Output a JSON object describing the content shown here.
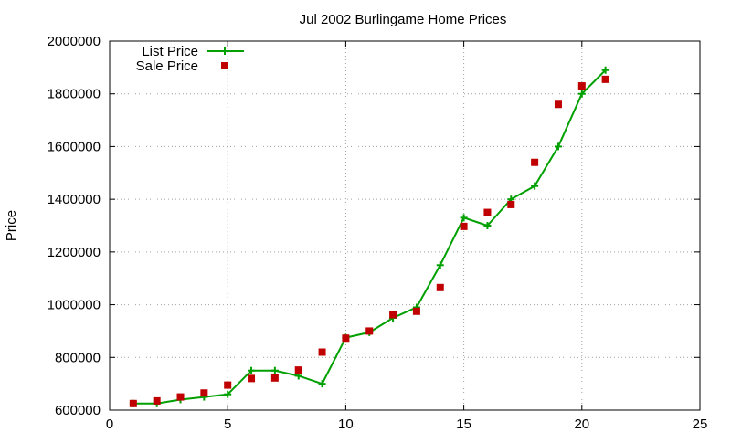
{
  "chart_data": {
    "type": "line",
    "title": "Jul 2002 Burlingame Home Prices",
    "xlabel": "",
    "ylabel": "Price",
    "xlim": [
      0,
      25
    ],
    "ylim": [
      600000,
      2000000
    ],
    "x_ticks": [
      0,
      5,
      10,
      15,
      20,
      25
    ],
    "y_ticks": [
      600000,
      800000,
      1000000,
      1200000,
      1400000,
      1600000,
      1800000,
      2000000
    ],
    "grid": true,
    "legend_position": "top-left",
    "series": [
      {
        "name": "List Price",
        "style": "line+cross",
        "color": "#00a000",
        "x": [
          1,
          2,
          3,
          4,
          5,
          6,
          7,
          8,
          9,
          10,
          11,
          12,
          13,
          14,
          15,
          16,
          17,
          18,
          19,
          20,
          21
        ],
        "values": [
          625000,
          625000,
          640000,
          650000,
          660000,
          750000,
          750000,
          730000,
          700000,
          875000,
          895000,
          950000,
          990000,
          1150000,
          1330000,
          1300000,
          1400000,
          1450000,
          1600000,
          1800000,
          1890000
        ]
      },
      {
        "name": "Sale Price",
        "style": "square-points",
        "color": "#c00000",
        "x": [
          1,
          2,
          3,
          4,
          5,
          6,
          7,
          8,
          9,
          10,
          11,
          12,
          13,
          14,
          15,
          16,
          17,
          18,
          19,
          20,
          21
        ],
        "values": [
          625000,
          635000,
          650000,
          665000,
          695000,
          720000,
          722000,
          752000,
          820000,
          873000,
          900000,
          962000,
          975000,
          1065000,
          1297000,
          1350000,
          1380000,
          1540000,
          1760000,
          1830000,
          1855000
        ]
      }
    ]
  }
}
